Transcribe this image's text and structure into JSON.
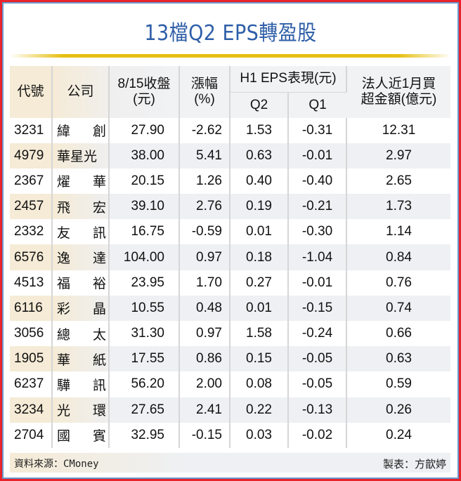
{
  "title": "13檔Q2  EPS轉盈股",
  "colors": {
    "title": "#2f5fa8",
    "rule": "#e6bf12",
    "outer_border": "#e8232a",
    "inner_border": "#6a96cc",
    "alt_row": "#eef0f3",
    "code_highlight": "#f5ebd6"
  },
  "table": {
    "headers": {
      "code": "代號",
      "name": "公司",
      "close_line1": "8/15收盤",
      "close_line2": "(元)",
      "change_line1": "漲幅",
      "change_line2": "(%)",
      "eps_group": "H1 EPS表現(元)",
      "q2": "Q2",
      "q1": "Q1",
      "inst_line1": "法人近1月買",
      "inst_line2": "超金額(億元)"
    },
    "rows": [
      {
        "code": "3231",
        "name": [
          "緯",
          "創"
        ],
        "close": "27.90",
        "change": "-2.62",
        "q2": "1.53",
        "q1": "-0.31",
        "inst": "12.31"
      },
      {
        "code": "4979",
        "name": [
          "華星光"
        ],
        "close": "38.00",
        "change": "5.41",
        "q2": "0.63",
        "q1": "-0.01",
        "inst": "2.97"
      },
      {
        "code": "2367",
        "name": [
          "燿",
          "華"
        ],
        "close": "20.15",
        "change": "1.26",
        "q2": "0.40",
        "q1": "-0.40",
        "inst": "2.65"
      },
      {
        "code": "2457",
        "name": [
          "飛",
          "宏"
        ],
        "close": "39.10",
        "change": "2.76",
        "q2": "0.19",
        "q1": "-0.21",
        "inst": "1.73"
      },
      {
        "code": "2332",
        "name": [
          "友",
          "訊"
        ],
        "close": "16.75",
        "change": "-0.59",
        "q2": "0.01",
        "q1": "-0.30",
        "inst": "1.14"
      },
      {
        "code": "6576",
        "name": [
          "逸",
          "達"
        ],
        "close": "104.00",
        "change": "0.97",
        "q2": "0.18",
        "q1": "-1.04",
        "inst": "0.84"
      },
      {
        "code": "4513",
        "name": [
          "福",
          "裕"
        ],
        "close": "23.95",
        "change": "1.70",
        "q2": "0.27",
        "q1": "-0.01",
        "inst": "0.76"
      },
      {
        "code": "6116",
        "name": [
          "彩",
          "晶"
        ],
        "close": "10.55",
        "change": "0.48",
        "q2": "0.01",
        "q1": "-0.15",
        "inst": "0.74"
      },
      {
        "code": "3056",
        "name": [
          "總",
          "太"
        ],
        "close": "31.30",
        "change": "0.97",
        "q2": "1.58",
        "q1": "-0.24",
        "inst": "0.66"
      },
      {
        "code": "1905",
        "name": [
          "華",
          "紙"
        ],
        "close": "17.55",
        "change": "0.86",
        "q2": "0.15",
        "q1": "-0.05",
        "inst": "0.63"
      },
      {
        "code": "6237",
        "name": [
          "驊",
          "訊"
        ],
        "close": "56.20",
        "change": "2.00",
        "q2": "0.08",
        "q1": "-0.05",
        "inst": "0.59"
      },
      {
        "code": "3234",
        "name": [
          "光",
          "環"
        ],
        "close": "27.65",
        "change": "2.41",
        "q2": "0.22",
        "q1": "-0.13",
        "inst": "0.26"
      },
      {
        "code": "2704",
        "name": [
          "國",
          "賓"
        ],
        "close": "32.95",
        "change": "-0.15",
        "q2": "0.03",
        "q1": "-0.02",
        "inst": "0.24"
      }
    ]
  },
  "footer": {
    "source": "資料來源：CMoney",
    "author": "製表：方歆婷"
  }
}
